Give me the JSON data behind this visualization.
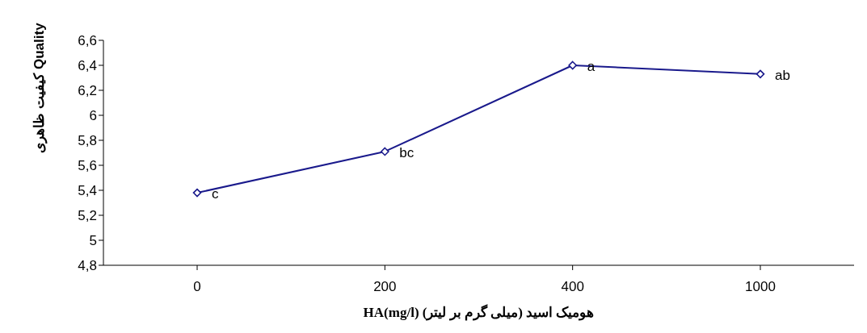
{
  "chart_data": {
    "type": "line",
    "xlabel": "HA(mg/l) هومیک اسید (میلی گرم بر لیتر)",
    "ylabel": "کیفیت ظاهری Quality",
    "categories": [
      "0",
      "200",
      "400",
      "1000"
    ],
    "series": [
      {
        "color": "#1a1a8c",
        "values": [
          5.38,
          5.71,
          6.4,
          6.33
        ]
      }
    ],
    "ylim": [
      4.8,
      6.6
    ],
    "yticks": [
      {
        "value": 4.8,
        "label": "4,8"
      },
      {
        "value": 5,
        "label": "5"
      },
      {
        "value": 5.2,
        "label": "5,2"
      },
      {
        "value": 5.4,
        "label": "5,4"
      },
      {
        "value": 5.6,
        "label": "5,6"
      },
      {
        "value": 5.8,
        "label": "5,8"
      },
      {
        "value": 6,
        "label": "6"
      },
      {
        "value": 6.2,
        "label": "6,2"
      },
      {
        "value": 6.4,
        "label": "6,4"
      },
      {
        "value": 6.6,
        "label": "6,6"
      }
    ],
    "grid": false,
    "legend": false,
    "marker": "diamond",
    "line_style": "solid",
    "annotations": [
      {
        "text": "c",
        "x": "0",
        "y": 5.38
      },
      {
        "text": "bc",
        "x": "200",
        "y": 5.71
      },
      {
        "text": "a",
        "x": "400",
        "y": 6.4
      },
      {
        "text": "ab",
        "x": "1000",
        "y": 6.33
      }
    ]
  }
}
